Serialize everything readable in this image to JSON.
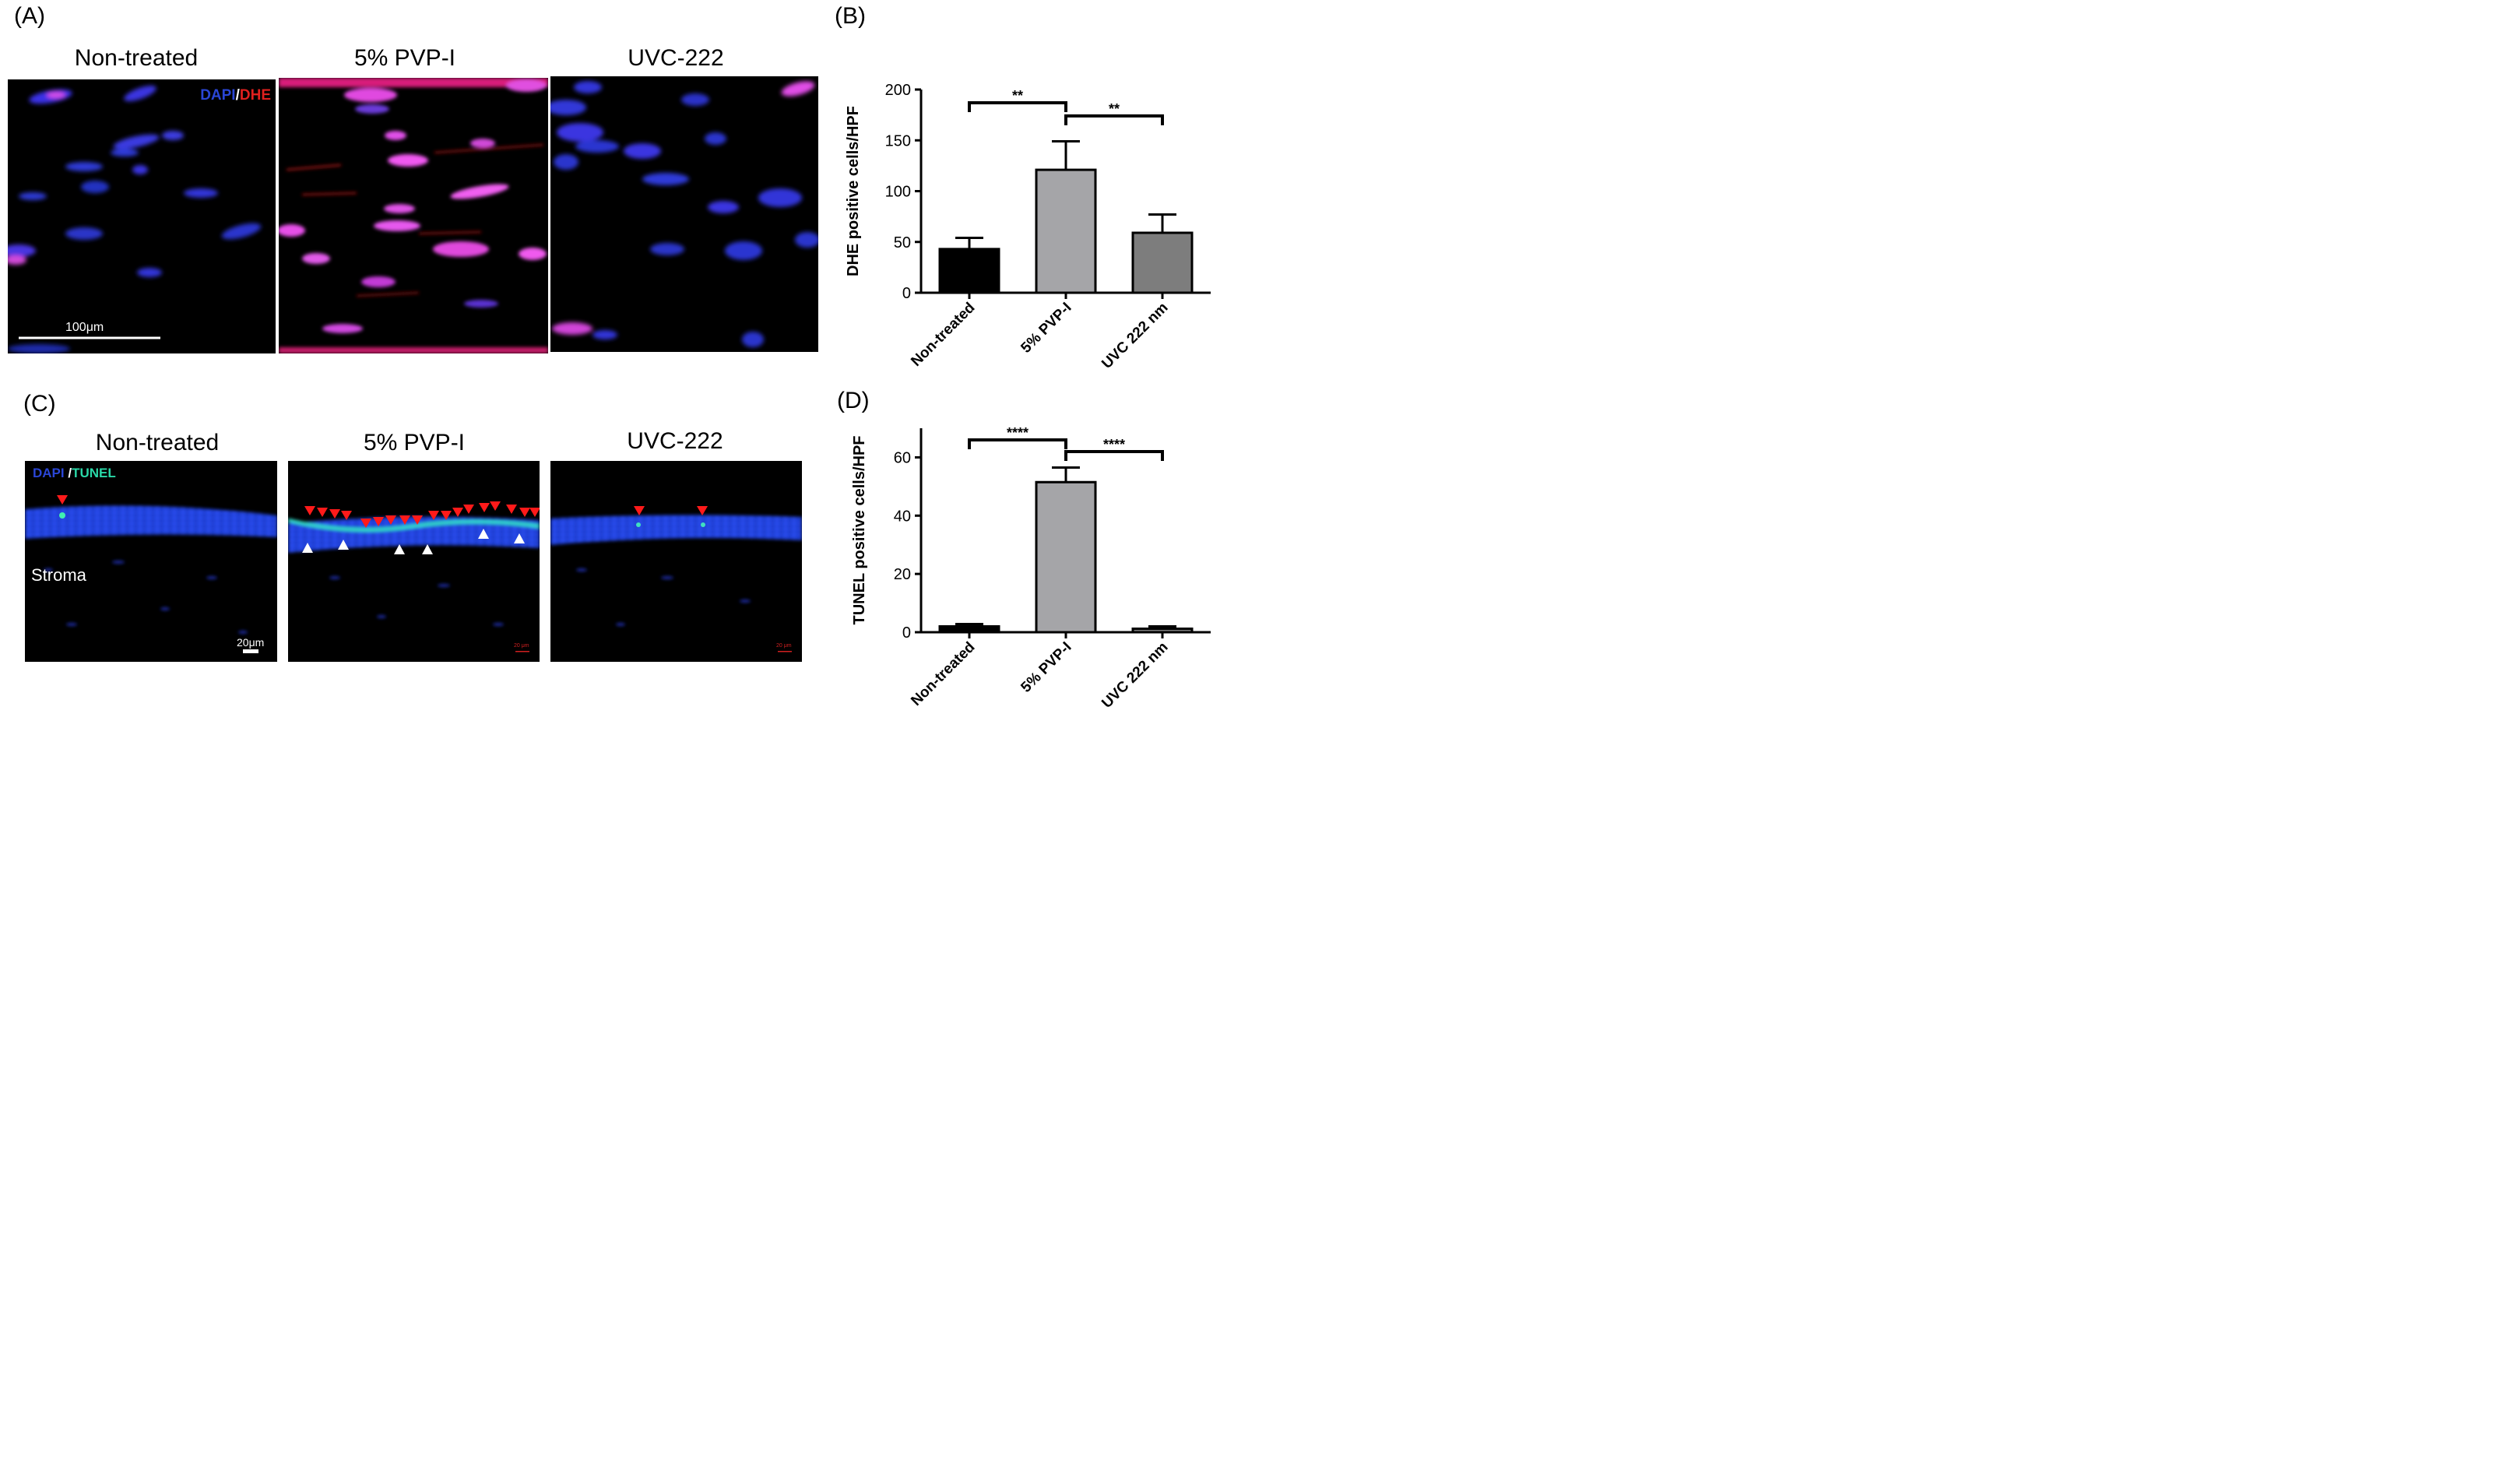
{
  "panels": {
    "a": {
      "letter": "(A)",
      "titles": [
        "Non-treated",
        "5% PVP-I",
        "UVC-222"
      ],
      "stain_dapi": "DAPI",
      "stain_sep": "/",
      "stain_marker": "DHE",
      "scale_label": "100μm"
    },
    "c": {
      "letter": "(C)",
      "titles": [
        "Non-treated",
        "5% PVP-I",
        "UVC-222"
      ],
      "stain_dapi": "DAPI ",
      "stain_sep": "/",
      "stain_marker": "TUNEL",
      "tissue_label": "Stroma",
      "scale_label": "20μm",
      "small_scale_label": "20 μm"
    },
    "b": {
      "letter": "(B)"
    },
    "d": {
      "letter": "(D)"
    }
  },
  "chart_data": [
    {
      "type": "bar",
      "panel": "B",
      "categories": [
        "Non-treated",
        "5% PVP-I",
        "UVC 222 nm"
      ],
      "values": [
        43,
        121,
        59
      ],
      "errors": [
        11,
        28,
        18
      ],
      "colors": [
        "#000000",
        "#a5a5a8",
        "#7d7d7d"
      ],
      "ylabel": "DHE positive cells/HPF",
      "ylim": [
        0,
        200
      ],
      "yticks": [
        0,
        50,
        100,
        150,
        200
      ],
      "significance": [
        {
          "from": 0,
          "to": 1,
          "label": "**",
          "level": 187
        },
        {
          "from": 1,
          "to": 2,
          "label": "**",
          "level": 174
        }
      ]
    },
    {
      "type": "bar",
      "panel": "D",
      "categories": [
        "Non-treated",
        "5% PVP-I",
        "UVC 222 nm"
      ],
      "values": [
        2,
        51.5,
        1.2
      ],
      "errors": [
        0.8,
        5,
        0.8
      ],
      "colors": [
        "#000000",
        "#a5a5a8",
        "#7d7d7d"
      ],
      "ylabel": "TUNEL positive cells/HPF",
      "ylim": [
        0,
        70
      ],
      "yticks": [
        0,
        20,
        40,
        60
      ],
      "significance": [
        {
          "from": 0,
          "to": 1,
          "label": "****",
          "level": 66
        },
        {
          "from": 1,
          "to": 2,
          "label": "****",
          "level": 62
        }
      ]
    }
  ]
}
